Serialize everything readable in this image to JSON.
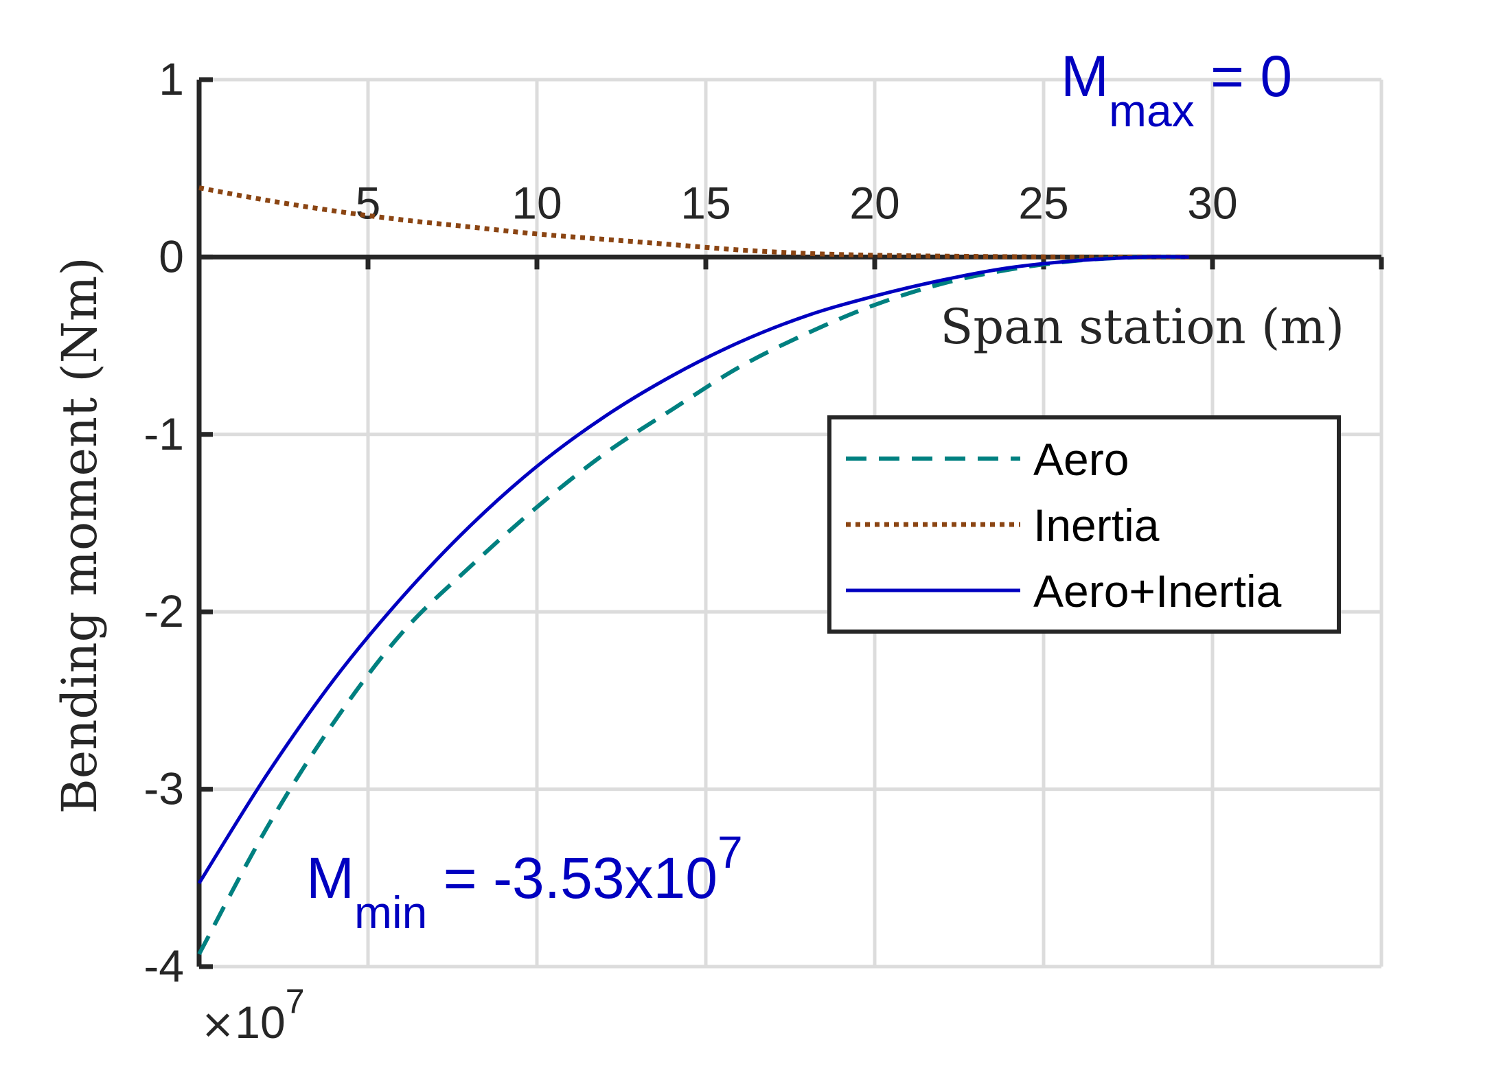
{
  "chart_data": {
    "type": "line",
    "xlabel": "Span station (m)",
    "ylabel": "Bending moment (Nm)",
    "xlim": [
      0,
      35
    ],
    "ylim": [
      -4,
      1
    ],
    "y_scale_factor": 10000000,
    "y_exponent_label": {
      "base": "10",
      "exponent": "7"
    },
    "xticks": [
      5,
      10,
      15,
      20,
      25,
      30
    ],
    "xtick_labels": [
      "5",
      "10",
      "15",
      "20",
      "25",
      "30"
    ],
    "yticks": [
      1,
      0,
      -1,
      -2,
      -3,
      -4
    ],
    "ytick_labels": [
      "1",
      "0",
      "-1",
      "-2",
      "-3",
      "-4"
    ],
    "grid": true,
    "x_axis_location": "origin",
    "legend_position": "right-center",
    "x": [
      0,
      2,
      4,
      6,
      8,
      10,
      12,
      14,
      16,
      18,
      20,
      22,
      24,
      26,
      28,
      29.3
    ],
    "series": [
      {
        "name": "Aero",
        "color": "#008080",
        "style": "dashed",
        "values": [
          -3.93,
          -3.22,
          -2.62,
          -2.12,
          -1.75,
          -1.41,
          -1.11,
          -0.86,
          -0.62,
          -0.43,
          -0.27,
          -0.15,
          -0.07,
          -0.02,
          0.0,
          0.0
        ]
      },
      {
        "name": "Inertia",
        "color": "#8b4513",
        "style": "dotted",
        "values": [
          0.39,
          0.32,
          0.26,
          0.21,
          0.17,
          0.13,
          0.1,
          0.07,
          0.04,
          0.02,
          0.01,
          0.005,
          0.002,
          0.0,
          0.0,
          0.0
        ]
      },
      {
        "name": "Aero+Inertia",
        "color": "#0000c0",
        "style": "solid",
        "values": [
          -3.53,
          -2.92,
          -2.38,
          -1.92,
          -1.52,
          -1.18,
          -0.9,
          -0.67,
          -0.48,
          -0.33,
          -0.22,
          -0.13,
          -0.06,
          -0.02,
          0.0,
          0.0
        ]
      }
    ],
    "annotations": {
      "max": {
        "main": "M",
        "sub": "max",
        "tail": " = 0",
        "color": "#0000c0"
      },
      "min": {
        "main": "M",
        "sub": "min",
        "tail": " = -3.53x10",
        "sup": "7",
        "color": "#0000c0"
      }
    }
  }
}
